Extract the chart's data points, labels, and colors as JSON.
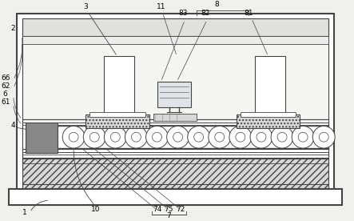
{
  "bg_color": "#f0f0ec",
  "line_color": "#444444",
  "white": "#ffffff",
  "gray_light": "#d8d8d8",
  "gray_mid": "#b0b0b0",
  "gray_dark": "#888888"
}
